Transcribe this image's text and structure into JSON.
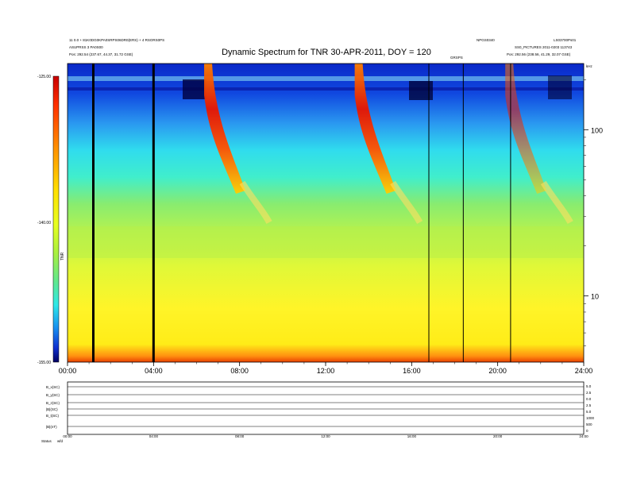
{
  "header": {
    "title": "Dynamic Spectrum for TNR 30-APR-2011, DOY = 120",
    "left_line1": "11 0.0 + 81K0DG0KPA0SRPS06DR0(ERS) + 4 RSORS0PS",
    "left_line2": "ASUPRSS 3 PA0S00",
    "left_line3": "Pos: 292.54 (237.67, 44.37, 31.72 GSE)",
    "right_code1": "NPGS0340",
    "right_code2": "LS03700Ps01",
    "right_line2": "SS0_PICTURES 2011-0203 113743",
    "right_line3": "Pos: 292.56 (238.56, 41.29, 32.07 GSE)",
    "mid_label": "GRSPS",
    "corner_label": "kHz"
  },
  "colorbar": {
    "label": "TNR",
    "ticks": [
      "-125.00",
      "-140.00",
      "-155.00"
    ],
    "colors": [
      "#c80000",
      "#ff3000",
      "#ff9000",
      "#ffe000",
      "#e6ff20",
      "#a8f040",
      "#5ee890",
      "#2ee8e8",
      "#1890f0",
      "#1030d0",
      "#000060"
    ]
  },
  "chart_data": {
    "type": "heatmap",
    "title": "Dynamic Spectrum for TNR 30-APR-2011, DOY = 120",
    "xlabel": "",
    "ylabel": "kHz",
    "xlim": [
      0,
      24
    ],
    "ylim_log": [
      4,
      250
    ],
    "x_tick_labels": [
      "00:00",
      "04:00",
      "08:00",
      "12:00",
      "16:00",
      "20:00",
      "24:00"
    ],
    "y_tick_labels": [
      "100",
      "10"
    ],
    "color_scale": [
      -155,
      -125
    ],
    "bursts_hours": [
      6.5,
      13.5,
      20.5
    ],
    "data_gaps_hours": [
      1.2,
      4.0,
      16.8,
      18.4,
      20.6
    ]
  },
  "bottom_panel": {
    "row_labels": [
      "B_x(SC)",
      "B_y(SC)",
      "B_z(SC)",
      "|B|(SC)",
      "B_t(SC)",
      "|B|(nT)"
    ],
    "right_labels": [
      "5.0",
      "2.5",
      "0.0",
      "2.5",
      "5.0",
      "1000",
      "500",
      "0"
    ],
    "time_labels": [
      "00:00",
      "04:00",
      "08:00",
      "12:00",
      "16:00",
      "20:00",
      "24:00"
    ],
    "status_label": "Status",
    "status_value": "wfd"
  }
}
